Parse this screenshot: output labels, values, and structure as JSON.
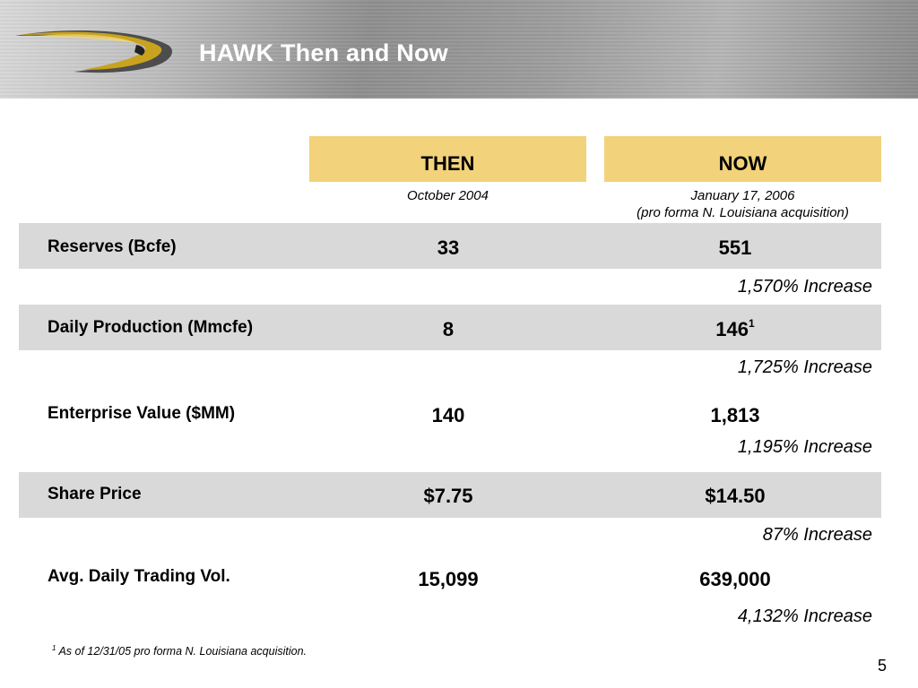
{
  "header": {
    "title": "HAWK Then and Now"
  },
  "columns": {
    "then": {
      "label": "THEN",
      "date": "October  2004"
    },
    "now": {
      "label": "NOW",
      "date_line1": "January 17, 2006",
      "date_line2": "(pro forma N. Louisiana acquisition)"
    }
  },
  "rows": [
    {
      "label": "Reserves (Bcfe)",
      "then": "33",
      "now": "551",
      "now_sup": "",
      "increase": "1,570% Increase"
    },
    {
      "label": "Daily Production (Mmcfe)",
      "then": "8",
      "now": "146",
      "now_sup": "1",
      "increase": "1,725% Increase"
    },
    {
      "label": "Enterprise Value ($MM)",
      "then": "140",
      "now": "1,813",
      "now_sup": "",
      "increase": "1,195% Increase"
    },
    {
      "label": "Share Price",
      "then": "$7.75",
      "now": "$14.50",
      "now_sup": "",
      "increase": "87% Increase"
    },
    {
      "label": "Avg. Daily Trading Vol.",
      "then": "15,099",
      "now": "639,000",
      "now_sup": "",
      "increase": "4,132% Increase"
    }
  ],
  "footnote": {
    "marker": "1",
    "text": " As of 12/31/05 pro forma N. Louisiana acquisition."
  },
  "page_number": "5",
  "colors": {
    "column_header_fill": "#f2d27a",
    "row_band_fill": "#d9d9d9",
    "logo_gold": "#c9a21e",
    "title_text": "#ffffff"
  },
  "icons": {
    "logo": "hawk-swoosh-logo"
  }
}
